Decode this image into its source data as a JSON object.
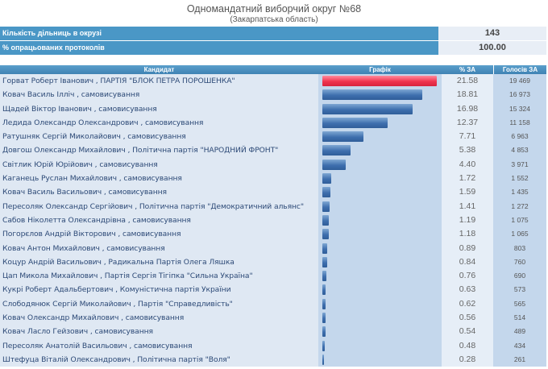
{
  "header": {
    "title": "Одномандатний виборчий округ №68",
    "subtitle": "(Закарпатська область)"
  },
  "summary": [
    {
      "label": "Кількість дільниць в окрузі",
      "value": "143"
    },
    {
      "label": "% опрацьованих протоколів",
      "value": "100.00"
    }
  ],
  "table": {
    "columns": [
      "Кандидат",
      "Графік",
      "% ЗА",
      "Голосів ЗА"
    ],
    "rows": [
      {
        "candidate": "Горват Роберт Іванович , ПАРТІЯ \"БЛОК ПЕТРА ПОРОШЕНКА\"",
        "percent": "21.58",
        "votes": "19 469"
      },
      {
        "candidate": "Ковач Василь Ілліч , самовисування",
        "percent": "18.81",
        "votes": "16 973"
      },
      {
        "candidate": "Щадей Віктор Іванович , самовисування",
        "percent": "16.98",
        "votes": "15 324"
      },
      {
        "candidate": "Ледида Олександр Олександрович , самовисування",
        "percent": "12.37",
        "votes": "11 158"
      },
      {
        "candidate": "Ратушняк Сергій Миколайович , самовисування",
        "percent": "7.71",
        "votes": "6 963"
      },
      {
        "candidate": "Довгош Олександр Михайлович , Політична партія \"НАРОДНИЙ ФРОНТ\"",
        "percent": "5.38",
        "votes": "4 853"
      },
      {
        "candidate": "Світлик Юрій Юрійович , самовисування",
        "percent": "4.40",
        "votes": "3 971"
      },
      {
        "candidate": "Каганець Руслан Михайлович , самовисування",
        "percent": "1.72",
        "votes": "1 552"
      },
      {
        "candidate": "Ковач Василь Васильович , самовисування",
        "percent": "1.59",
        "votes": "1 435"
      },
      {
        "candidate": "Пересоляк Олександр Сергійович , Політична партія \"Демократичний альянс\"",
        "percent": "1.41",
        "votes": "1 272"
      },
      {
        "candidate": "Сабов Ніколетта Олександрівна , самовисування",
        "percent": "1.19",
        "votes": "1 075"
      },
      {
        "candidate": "Погорєлов Андрій Вікторович , самовисування",
        "percent": "1.18",
        "votes": "1 065"
      },
      {
        "candidate": "Ковач Антон Михайлович , самовисування",
        "percent": "0.89",
        "votes": "803"
      },
      {
        "candidate": "Коцур Андрій Васильович , Радикальна Партія Олега Ляшка",
        "percent": "0.84",
        "votes": "760"
      },
      {
        "candidate": "Цап Микола Михайлович , Партія Сергія Тігіпка \"Сильна Україна\"",
        "percent": "0.76",
        "votes": "690"
      },
      {
        "candidate": "Кукрі Роберт Адальбертович , Комуністична партія України",
        "percent": "0.63",
        "votes": "573"
      },
      {
        "candidate": "Слободянюк Сергій Миколайович , Партія \"Справедливість\"",
        "percent": "0.62",
        "votes": "565"
      },
      {
        "candidate": "Ковач Олександр Михайлович , самовисування",
        "percent": "0.56",
        "votes": "514"
      },
      {
        "candidate": "Ковач Ласло Гейзович , самовисування",
        "percent": "0.54",
        "votes": "489"
      },
      {
        "candidate": "Пересоляк Анатолій Васильович , самовисування",
        "percent": "0.48",
        "votes": "434"
      },
      {
        "candidate": "Штефуца Віталій Олександрович , Політична партія \"Воля\"",
        "percent": "0.28",
        "votes": "261"
      }
    ]
  },
  "colors": {
    "header_blue": "#4a97c6",
    "leader_bar": "#f0344f",
    "bar_blue": "#3e6fae",
    "row_bg": "#dfe8f3",
    "chart_bg": "#c4d7ec"
  }
}
